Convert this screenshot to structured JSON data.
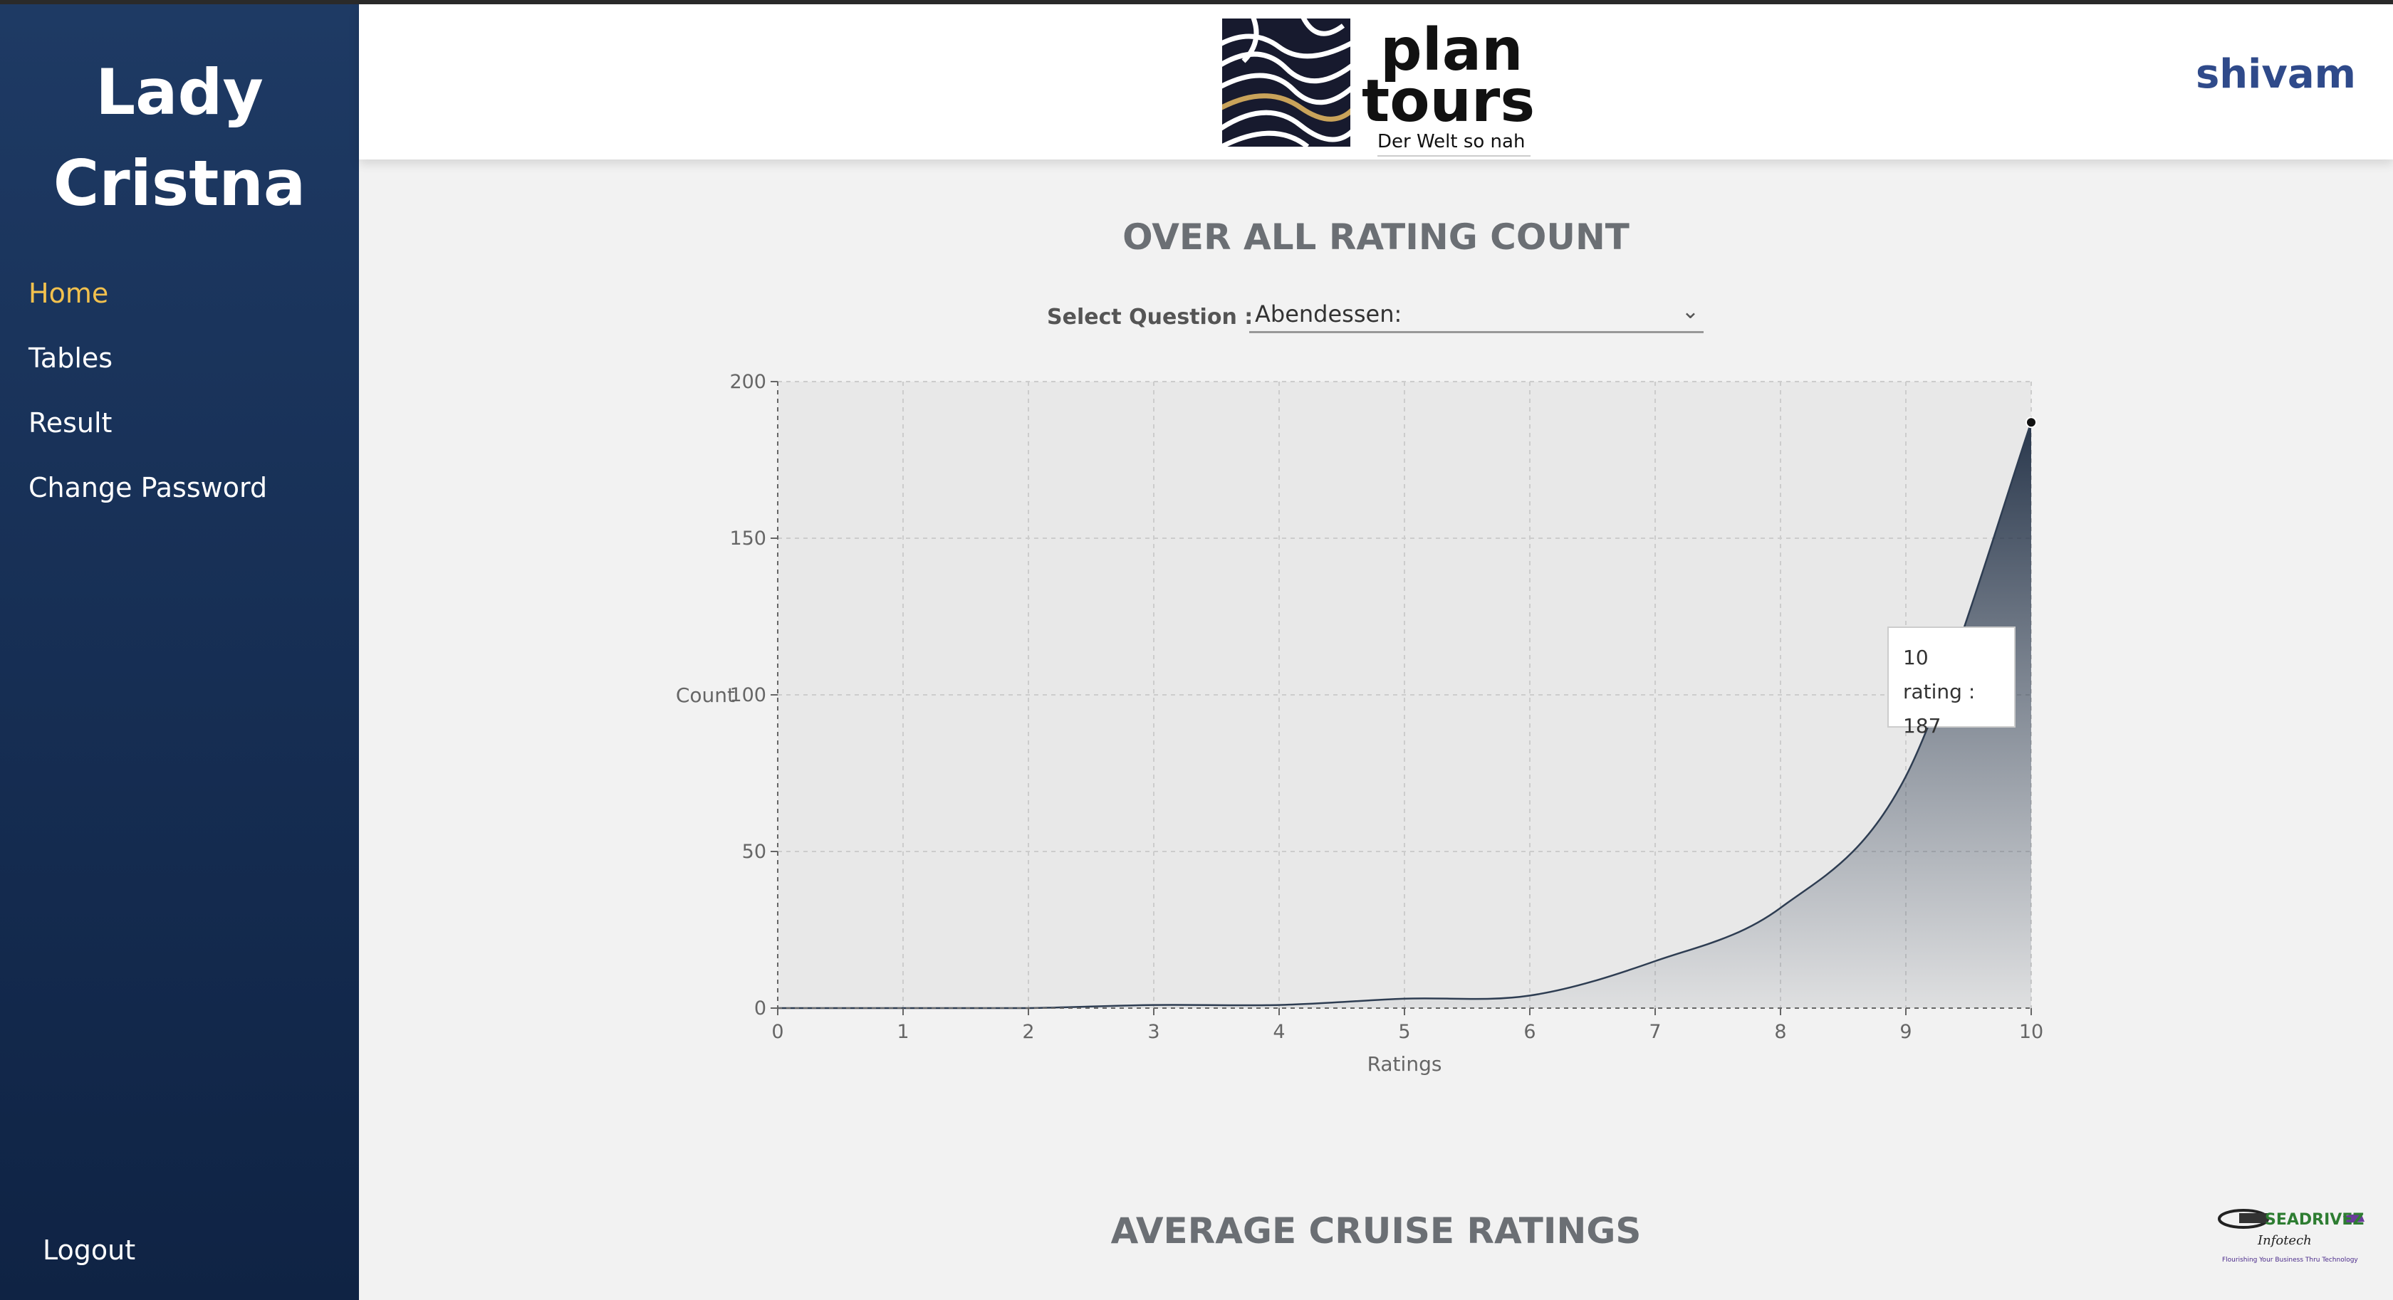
{
  "sidebar": {
    "brand_line1": "Lady",
    "brand_line2": "Cristna",
    "items": [
      {
        "label": "Home",
        "active": true
      },
      {
        "label": "Tables"
      },
      {
        "label": "Result"
      },
      {
        "label": "Change Password"
      }
    ],
    "logout_label": "Logout"
  },
  "header": {
    "logo_line1": "plan",
    "logo_line2": "tours",
    "logo_tagline": "Der Welt so nah",
    "user_name": "shivam"
  },
  "main": {
    "section1_title": "OVER ALL RATING COUNT",
    "select_label": "Select Question :",
    "select_value": "Abendessen:",
    "section2_title": "AVERAGE CRUISE RATINGS"
  },
  "tooltip": {
    "line1": "10",
    "line2": "rating : 187"
  },
  "footer_logo": {
    "name": "SEADRIVEZ",
    "sub": "Infotech",
    "tagline": "Flourishing Your Business Thru Technology"
  },
  "colors": {
    "sidebar_top": "#1e3a64",
    "sidebar_bottom": "#0f2344",
    "active_nav": "#f2c14e",
    "user_name": "#2f4a8a",
    "series": "#2e3d52"
  },
  "chart_data": {
    "type": "area",
    "xlabel": "Ratings",
    "ylabel": "Count",
    "x": [
      0,
      1,
      2,
      3,
      4,
      5,
      6,
      7,
      8,
      9,
      10
    ],
    "series": [
      {
        "values": [
          0,
          0,
          0,
          1,
          1,
          3,
          4,
          15,
          32,
          74,
          187
        ]
      }
    ],
    "xlim": [
      0,
      10
    ],
    "ylim": [
      0,
      200
    ],
    "yticks": [
      0,
      50,
      100,
      150,
      200
    ],
    "xticks": [
      0,
      1,
      2,
      3,
      4,
      5,
      6,
      7,
      8,
      9,
      10
    ],
    "grid": true,
    "highlight_index": 10
  }
}
